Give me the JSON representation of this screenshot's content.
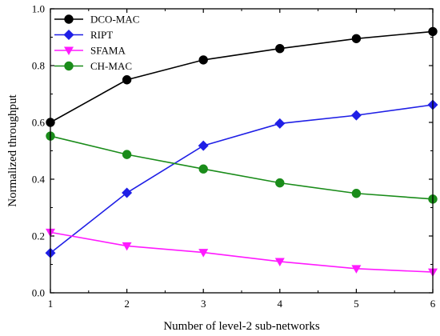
{
  "chart_data": {
    "type": "line",
    "xlabel": "Number of level-2 sub-networks",
    "ylabel": "Normalized throughput",
    "xlim": [
      1,
      6
    ],
    "ylim": [
      0.0,
      1.0
    ],
    "x_ticks": [
      "1",
      "2",
      "3",
      "4",
      "5",
      "6"
    ],
    "y_ticks": [
      "0.0",
      "0.2",
      "0.4",
      "0.6",
      "0.8",
      "1.0"
    ],
    "x": [
      1,
      2,
      3,
      4,
      5,
      6
    ],
    "grid": false,
    "legend_position": "top-left",
    "series": [
      {
        "name": "DCO-MAC",
        "color": "#000000",
        "marker": "circle",
        "values": [
          0.6,
          0.75,
          0.82,
          0.86,
          0.895,
          0.92
        ]
      },
      {
        "name": "RIPT",
        "color": "#1f1fe6",
        "marker": "diamond",
        "values": [
          0.14,
          0.352,
          0.518,
          0.596,
          0.625,
          0.662
        ]
      },
      {
        "name": "SFAMA",
        "color": "#ff1aff",
        "marker": "triangle-down",
        "values": [
          0.213,
          0.165,
          0.142,
          0.11,
          0.085,
          0.073
        ]
      },
      {
        "name": "CH-MAC",
        "color": "#1a8c1a",
        "marker": "circle",
        "values": [
          0.552,
          0.487,
          0.436,
          0.387,
          0.35,
          0.33
        ]
      }
    ]
  }
}
